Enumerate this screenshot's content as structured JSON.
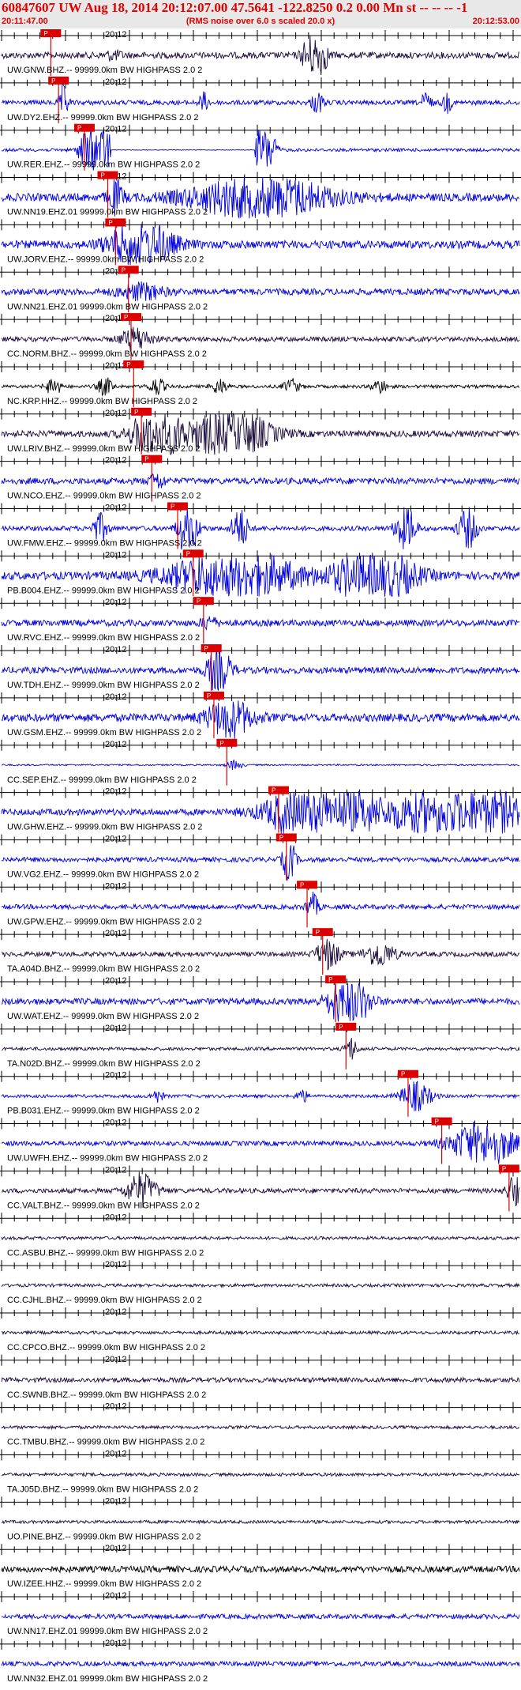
{
  "header": {
    "title": "60847607 UW Aug 18, 2014 20:12:07.00    47.5641 -122.8250  0.2 0.00 Mn st -- -- --  -1",
    "subtitle": "(RMS noise over 6.0 s scaled 20.0 x)",
    "time_start": "20:11:47.00",
    "time_end": "20:12:53.00"
  },
  "minute_label": "20:12",
  "pick_label": "P",
  "colors": {
    "blue": "#0000dd",
    "dark": "#1a0a3a",
    "black": "#000000",
    "pick": "#dd0000",
    "text": "#000000"
  },
  "traces": [
    {
      "label": "UW.GNW.BHZ.-- 99999.0km BW  HIGHPASS  2.0  2",
      "color": "dark",
      "amp": 4,
      "pick": 0.095,
      "bursts": [
        [
          0.215,
          0.012,
          0.3
        ],
        [
          0.605,
          0.012,
          4.5
        ]
      ]
    },
    {
      "label": "UW.DY2.EHZ.-- 99999.0km BW  HIGHPASS  2.0  2",
      "color": "blue",
      "amp": 3,
      "pick": 0.11,
      "bursts": [
        [
          0.12,
          0.006,
          1.8
        ],
        [
          0.39,
          0.006,
          1.0
        ],
        [
          0.61,
          0.008,
          1.1
        ],
        [
          0.82,
          0.006,
          1.2
        ],
        [
          0.86,
          0.006,
          1.0
        ]
      ]
    },
    {
      "label": "UW.RER.EHZ.-- 99999.0km BW  HIGHPASS  2.0  2",
      "color": "blue",
      "amp": 2,
      "pick": 0.16,
      "flat": [
        0.21,
        0.49
      ],
      "bursts": [
        [
          0.17,
          0.01,
          12
        ],
        [
          0.195,
          0.01,
          12
        ],
        [
          0.51,
          0.01,
          10
        ]
      ]
    },
    {
      "label": "UW.NN19.EHZ.01 99999.0km BW  HIGHPASS  2.0  2",
      "color": "blue",
      "amp": 5,
      "pick": 0.205,
      "bursts": [
        [
          0.5,
          0.09,
          1.4
        ],
        [
          0.22,
          0.01,
          1.0
        ]
      ]
    },
    {
      "label": "UW.JORV.EHZ.-- 99999.0km BW  HIGHPASS  2.0  2",
      "color": "blue",
      "amp": 5,
      "pick": 0.22,
      "bursts": [
        [
          0.27,
          0.04,
          1.6
        ]
      ]
    },
    {
      "label": "UW.NN21.EHZ.01 99999.0km BW  HIGHPASS  2.0  2",
      "color": "blue",
      "amp": 4,
      "pick": 0.245,
      "bursts": [
        [
          0.27,
          0.03,
          0.6
        ]
      ]
    },
    {
      "label": "CC.NORM.BHZ.-- 99999.0km BW  HIGHPASS  2.0  2",
      "color": "dark",
      "amp": 3,
      "pick": 0.25,
      "bursts": [
        [
          0.26,
          0.02,
          1.2
        ]
      ]
    },
    {
      "label": "NC.KRP.HHZ.-- 99999.0km BW  HIGHPASS  2.0  2",
      "color": "black",
      "amp": 2,
      "pick": 0.255,
      "bursts": [
        [
          0.1,
          0.01,
          1.4
        ],
        [
          0.2,
          0.01,
          1.4
        ],
        [
          0.3,
          0.01,
          1.4
        ],
        [
          0.42,
          0.01,
          1.2
        ],
        [
          0.56,
          0.01,
          1.2
        ],
        [
          0.73,
          0.01,
          1.1
        ]
      ]
    },
    {
      "label": "UW.LRIV.BHZ.-- 99999.0km BW  HIGHPASS  2.0  2",
      "color": "dark",
      "amp": 4,
      "pick": 0.27,
      "bursts": [
        [
          0.3,
          0.03,
          2.5
        ],
        [
          0.44,
          0.05,
          2.2
        ]
      ]
    },
    {
      "label": "UW.NCO.EHZ.-- 99999.0km BW  HIGHPASS  2.0  2",
      "color": "blue",
      "amp": 4,
      "pick": 0.29,
      "bursts": [
        [
          0.3,
          0.01,
          0.6
        ]
      ]
    },
    {
      "label": "UW.FMW.EHZ.-- 99999.0km BW  HIGHPASS  2.0  2",
      "color": "blue",
      "amp": 3,
      "pick": 0.34,
      "bursts": [
        [
          0.19,
          0.01,
          1.5
        ],
        [
          0.36,
          0.012,
          3.5
        ],
        [
          0.46,
          0.01,
          2.5
        ],
        [
          0.78,
          0.012,
          3.0
        ],
        [
          0.9,
          0.012,
          2.2
        ]
      ]
    },
    {
      "label": "PB.B004.EHZ.-- 99999.0km BW  HIGHPASS  2.0  2",
      "color": "blue",
      "amp": 5,
      "pick": 0.37,
      "bursts": [
        [
          0.45,
          0.08,
          1.7
        ],
        [
          0.72,
          0.05,
          2.0
        ]
      ]
    },
    {
      "label": "UW.RVC.EHZ.-- 99999.0km BW  HIGHPASS  2.0  2",
      "color": "blue",
      "amp": 4,
      "pick": 0.39,
      "bursts": [
        [
          0.4,
          0.01,
          0.5
        ]
      ]
    },
    {
      "label": "UW.TDH.EHZ.-- 99999.0km BW  HIGHPASS  2.0  2",
      "color": "blue",
      "amp": 4,
      "pick": 0.405,
      "bursts": [
        [
          0.42,
          0.015,
          2.0
        ]
      ]
    },
    {
      "label": "UW.GSM.EHZ.-- 99999.0km BW  HIGHPASS  2.0  2",
      "color": "blue",
      "amp": 5,
      "pick": 0.41,
      "bursts": [
        [
          0.44,
          0.03,
          1.2
        ]
      ]
    },
    {
      "label": "CC.SEP.EHZ.-- 99999.0km BW  HIGHPASS  2.0  2",
      "color": "blue",
      "amp": 1,
      "pick": 0.435,
      "bursts": [
        [
          0.45,
          0.01,
          1.5
        ]
      ]
    },
    {
      "label": "UW.GHW.EHZ.-- 99999.0km BW  HIGHPASS  2.0  2",
      "color": "blue",
      "amp": 4,
      "pick": 0.535,
      "bursts": [
        [
          0.62,
          0.06,
          3.8
        ],
        [
          0.88,
          0.07,
          3.5
        ]
      ]
    },
    {
      "label": "UW.VG2.EHZ.-- 99999.0km BW  HIGHPASS  2.0  2",
      "color": "blue",
      "amp": 3,
      "pick": 0.55,
      "bursts": [
        [
          0.555,
          0.008,
          2.5
        ]
      ]
    },
    {
      "label": "UW.GPW.EHZ.-- 99999.0km BW  HIGHPASS  2.0  2",
      "color": "blue",
      "amp": 3,
      "pick": 0.59,
      "bursts": [
        [
          0.6,
          0.008,
          1.4
        ]
      ]
    },
    {
      "label": "TA.A04D.BHZ.-- 99999.0km BW  HIGHPASS  2.0  2",
      "color": "dark",
      "amp": 3,
      "pick": 0.62,
      "bursts": [
        [
          0.63,
          0.015,
          1.6
        ],
        [
          0.73,
          0.02,
          1.3
        ]
      ]
    },
    {
      "label": "UW.WAT.EHZ.-- 99999.0km BW  HIGHPASS  2.0  2",
      "color": "blue",
      "amp": 4,
      "pick": 0.645,
      "bursts": [
        [
          0.67,
          0.025,
          2.6
        ]
      ]
    },
    {
      "label": "TA.N02D.BHZ.-- 99999.0km BW  HIGHPASS  2.0  2",
      "color": "dark",
      "amp": 2,
      "pick": 0.665,
      "bursts": [
        [
          0.675,
          0.008,
          1.8
        ]
      ]
    },
    {
      "label": "PB.B031.EHZ.-- 99999.0km BW  HIGHPASS  2.0  2",
      "color": "blue",
      "amp": 2,
      "pick": 0.785,
      "bursts": [
        [
          0.3,
          0.008,
          1.0
        ],
        [
          0.58,
          0.008,
          1.0
        ],
        [
          0.8,
          0.02,
          2.3
        ]
      ]
    },
    {
      "label": "UW.UWFH.EHZ.-- 99999.0km BW  HIGHPASS  2.0  2",
      "color": "blue",
      "amp": 3,
      "pick": 0.85,
      "bursts": [
        [
          0.93,
          0.04,
          2.6
        ]
      ]
    },
    {
      "label": "CC.VALT.BHZ.-- 99999.0km BW  HIGHPASS  2.0  2",
      "color": "dark",
      "amp": 3,
      "pick": 0.98,
      "bursts": [
        [
          0.27,
          0.02,
          1.8
        ],
        [
          0.99,
          0.01,
          1.5
        ]
      ]
    },
    {
      "label": "CC.ASBU.BHZ.-- 99999.0km BW  HIGHPASS  2.0  2",
      "color": "dark",
      "amp": 2,
      "pick": null,
      "bursts": []
    },
    {
      "label": "CC.CJHL.BHZ.-- 99999.0km BW  HIGHPASS  2.0  2",
      "color": "dark",
      "amp": 2,
      "pick": null,
      "bursts": []
    },
    {
      "label": "CC.CPCO.BHZ.-- 99999.0km BW  HIGHPASS  2.0  2",
      "color": "dark",
      "amp": 2,
      "pick": null,
      "bursts": []
    },
    {
      "label": "CC.SWNB.BHZ.-- 99999.0km BW  HIGHPASS  2.0  2",
      "color": "dark",
      "amp": 3,
      "pick": null,
      "bursts": []
    },
    {
      "label": "CC.TMBU.BHZ.-- 99999.0km BW  HIGHPASS  2.0  2",
      "color": "dark",
      "amp": 2,
      "pick": null,
      "bursts": []
    },
    {
      "label": "TA.J05D.BHZ.-- 99999.0km BW  HIGHPASS  2.0  2",
      "color": "dark",
      "amp": 2,
      "pick": null,
      "bursts": []
    },
    {
      "label": "UO.PINE.BHZ.-- 99999.0km BW  HIGHPASS  2.0  2",
      "color": "dark",
      "amp": 2,
      "pick": null,
      "bursts": []
    },
    {
      "label": "UW.IZEE.HHZ.-- 99999.0km BW  HIGHPASS  2.0  2",
      "color": "black",
      "amp": 4,
      "pick": null,
      "bursts": []
    },
    {
      "label": "UW.NN17.EHZ.01 99999.0km BW  HIGHPASS  2.0  2",
      "color": "blue",
      "amp": 3,
      "pick": null,
      "bursts": []
    },
    {
      "label": "UW.NN32.EHZ.01 99999.0km BW  HIGHPASS  2.0  2",
      "color": "blue",
      "amp": 3,
      "pick": null,
      "bursts": []
    }
  ]
}
